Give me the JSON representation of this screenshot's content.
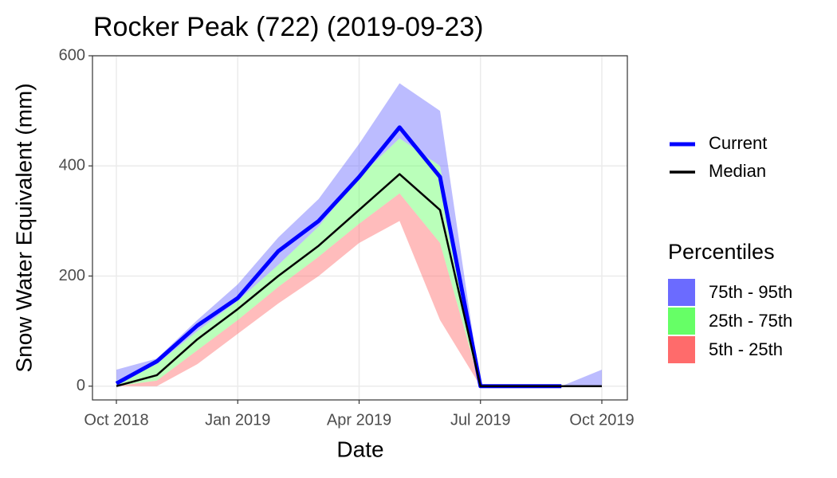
{
  "chart_data": {
    "type": "line",
    "title": "Rocker Peak (722) (2019-09-23)",
    "x_label": "Date",
    "y_label": "Snow Water Equivalent (mm)",
    "x": [
      "2018-10",
      "2018-11",
      "2018-12",
      "2019-01",
      "2019-02",
      "2019-03",
      "2019-04",
      "2019-05",
      "2019-06",
      "2019-07",
      "2019-08",
      "2019-09",
      "2019-10"
    ],
    "series": [
      {
        "name": "Current",
        "color": "#0000ff",
        "values": [
          5,
          45,
          110,
          160,
          245,
          300,
          380,
          470,
          380,
          0,
          0,
          0,
          null
        ]
      },
      {
        "name": "Median",
        "color": "#000000",
        "values": [
          0,
          20,
          85,
          140,
          200,
          255,
          320,
          385,
          320,
          0,
          0,
          0,
          0
        ]
      }
    ],
    "legend_title": "Percentiles",
    "bands": [
      {
        "name": "75th - 95th",
        "color": "#6b6bff",
        "lower": [
          10,
          40,
          100,
          155,
          220,
          290,
          380,
          450,
          400,
          0,
          0,
          0,
          0
        ],
        "upper": [
          30,
          50,
          120,
          185,
          270,
          340,
          440,
          550,
          500,
          0,
          0,
          0,
          30
        ]
      },
      {
        "name": "25th - 75th",
        "color": "#66ff66",
        "lower": [
          0,
          10,
          65,
          120,
          180,
          235,
          295,
          350,
          260,
          0,
          0,
          0,
          0
        ],
        "upper": [
          10,
          40,
          100,
          155,
          220,
          290,
          380,
          450,
          400,
          0,
          0,
          0,
          0
        ]
      },
      {
        "name": "5th - 25th",
        "color": "#ff6b6b",
        "lower": [
          0,
          0,
          40,
          95,
          150,
          200,
          260,
          300,
          120,
          0,
          0,
          0,
          0
        ],
        "upper": [
          0,
          10,
          65,
          120,
          180,
          235,
          295,
          350,
          260,
          0,
          0,
          0,
          0
        ]
      }
    ],
    "xlim": [
      "2018-10",
      "2019-10"
    ],
    "xticks": [
      {
        "value": "2018-10",
        "label": "Oct 2018"
      },
      {
        "value": "2019-01",
        "label": "Jan 2019"
      },
      {
        "value": "2019-04",
        "label": "Apr 2019"
      },
      {
        "value": "2019-07",
        "label": "Jul 2019"
      },
      {
        "value": "2019-10",
        "label": "Oct 2019"
      }
    ],
    "ylim": [
      -25,
      600
    ],
    "yticks": [
      0,
      200,
      400,
      600
    ],
    "grid": true
  }
}
